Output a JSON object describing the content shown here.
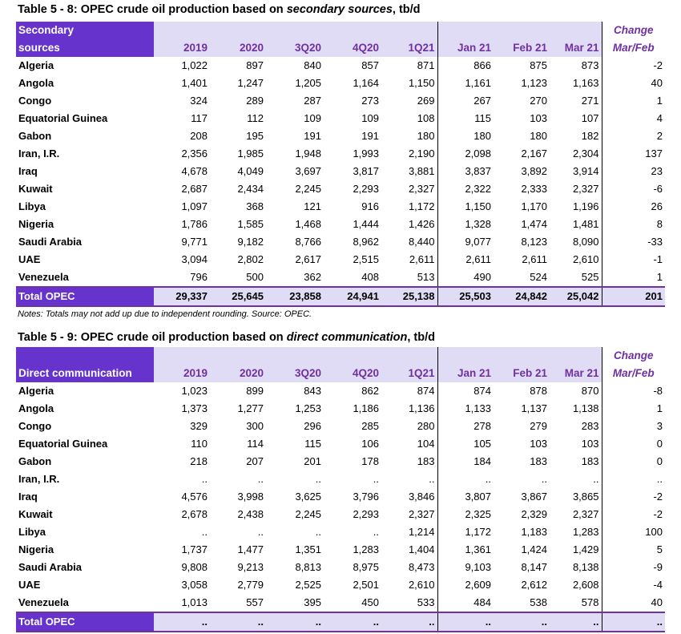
{
  "table1": {
    "title_prefix": "Table 5 - 8: OPEC crude oil production based on ",
    "title_italic": "secondary sources",
    "title_suffix": ", tb/d",
    "header": {
      "label_line1": "Secondary",
      "label_line2": "sources",
      "change_line1": "Change",
      "change_line2": "Mar/Feb",
      "columns": [
        "2019",
        "2020",
        "3Q20",
        "4Q20",
        "1Q21",
        "Jan 21",
        "Feb 21",
        "Mar 21"
      ]
    },
    "rows": [
      {
        "country": "Algeria",
        "values": [
          "1,022",
          "897",
          "840",
          "857",
          "871",
          "866",
          "875",
          "873"
        ],
        "change": "-2"
      },
      {
        "country": "Angola",
        "values": [
          "1,401",
          "1,247",
          "1,205",
          "1,164",
          "1,150",
          "1,161",
          "1,123",
          "1,163"
        ],
        "change": "40"
      },
      {
        "country": "Congo",
        "values": [
          "324",
          "289",
          "287",
          "273",
          "269",
          "267",
          "270",
          "271"
        ],
        "change": "1"
      },
      {
        "country": "Equatorial Guinea",
        "values": [
          "117",
          "112",
          "109",
          "109",
          "108",
          "115",
          "103",
          "107"
        ],
        "change": "4"
      },
      {
        "country": "Gabon",
        "values": [
          "208",
          "195",
          "191",
          "191",
          "180",
          "180",
          "180",
          "182"
        ],
        "change": "2"
      },
      {
        "country": "Iran, I.R.",
        "values": [
          "2,356",
          "1,985",
          "1,948",
          "1,993",
          "2,190",
          "2,098",
          "2,167",
          "2,304"
        ],
        "change": "137"
      },
      {
        "country": "Iraq",
        "values": [
          "4,678",
          "4,049",
          "3,697",
          "3,817",
          "3,881",
          "3,837",
          "3,892",
          "3,914"
        ],
        "change": "23"
      },
      {
        "country": "Kuwait",
        "values": [
          "2,687",
          "2,434",
          "2,245",
          "2,293",
          "2,327",
          "2,322",
          "2,333",
          "2,327"
        ],
        "change": "-6"
      },
      {
        "country": "Libya",
        "values": [
          "1,097",
          "368",
          "121",
          "916",
          "1,172",
          "1,150",
          "1,170",
          "1,196"
        ],
        "change": "26"
      },
      {
        "country": "Nigeria",
        "values": [
          "1,786",
          "1,585",
          "1,468",
          "1,444",
          "1,426",
          "1,328",
          "1,474",
          "1,481"
        ],
        "change": "8"
      },
      {
        "country": "Saudi Arabia",
        "values": [
          "9,771",
          "9,182",
          "8,766",
          "8,962",
          "8,440",
          "9,077",
          "8,123",
          "8,090"
        ],
        "change": "-33"
      },
      {
        "country": "UAE",
        "values": [
          "3,094",
          "2,802",
          "2,617",
          "2,515",
          "2,611",
          "2,611",
          "2,611",
          "2,610"
        ],
        "change": "-1"
      },
      {
        "country": "Venezuela",
        "values": [
          "796",
          "500",
          "362",
          "408",
          "513",
          "490",
          "524",
          "525"
        ],
        "change": "1"
      }
    ],
    "total": {
      "label": "Total  OPEC",
      "values": [
        "29,337",
        "25,645",
        "23,858",
        "24,941",
        "25,138",
        "25,503",
        "24,842",
        "25,042"
      ],
      "change": "201"
    },
    "note": "Notes: Totals may not add up due to independent rounding. Source: OPEC."
  },
  "table2": {
    "title_prefix": "Table 5 - 9: OPEC crude oil production based on ",
    "title_italic": "direct communication",
    "title_suffix": ", tb/d",
    "header": {
      "label_line1": "",
      "label_line2": "Direct communication",
      "change_line1": "Change",
      "change_line2": "Mar/Feb",
      "columns": [
        "2019",
        "2020",
        "3Q20",
        "4Q20",
        "1Q21",
        "Jan 21",
        "Feb 21",
        "Mar 21"
      ]
    },
    "rows": [
      {
        "country": "Algeria",
        "values": [
          "1,023",
          "899",
          "843",
          "862",
          "874",
          "874",
          "878",
          "870"
        ],
        "change": "-8"
      },
      {
        "country": "Angola",
        "values": [
          "1,373",
          "1,277",
          "1,253",
          "1,186",
          "1,136",
          "1,133",
          "1,137",
          "1,138"
        ],
        "change": "1"
      },
      {
        "country": "Congo",
        "values": [
          "329",
          "300",
          "296",
          "285",
          "280",
          "278",
          "279",
          "283"
        ],
        "change": "3"
      },
      {
        "country": "Equatorial Guinea",
        "values": [
          "110",
          "114",
          "115",
          "106",
          "104",
          "105",
          "103",
          "103"
        ],
        "change": "0"
      },
      {
        "country": "Gabon",
        "values": [
          "218",
          "207",
          "201",
          "178",
          "183",
          "184",
          "183",
          "183"
        ],
        "change": "0"
      },
      {
        "country": "Iran, I.R.",
        "values": [
          "..",
          "..",
          "..",
          "..",
          "..",
          "..",
          "..",
          ".."
        ],
        "change": ".."
      },
      {
        "country": "Iraq",
        "values": [
          "4,576",
          "3,998",
          "3,625",
          "3,796",
          "3,846",
          "3,807",
          "3,867",
          "3,865"
        ],
        "change": "-2"
      },
      {
        "country": "Kuwait",
        "values": [
          "2,678",
          "2,438",
          "2,245",
          "2,293",
          "2,327",
          "2,325",
          "2,329",
          "2,327"
        ],
        "change": "-2"
      },
      {
        "country": "Libya",
        "values": [
          "..",
          "..",
          "..",
          "..",
          "1,214",
          "1,172",
          "1,183",
          "1,283"
        ],
        "change": "100"
      },
      {
        "country": "Nigeria",
        "values": [
          "1,737",
          "1,477",
          "1,351",
          "1,283",
          "1,404",
          "1,361",
          "1,424",
          "1,429"
        ],
        "change": "5"
      },
      {
        "country": "Saudi Arabia",
        "values": [
          "9,808",
          "9,213",
          "8,813",
          "8,975",
          "8,473",
          "9,103",
          "8,147",
          "8,138"
        ],
        "change": "-9"
      },
      {
        "country": "UAE",
        "values": [
          "3,058",
          "2,779",
          "2,525",
          "2,501",
          "2,610",
          "2,609",
          "2,612",
          "2,608"
        ],
        "change": "-4"
      },
      {
        "country": "Venezuela",
        "values": [
          "1,013",
          "557",
          "395",
          "450",
          "533",
          "484",
          "538",
          "578"
        ],
        "change": "40"
      }
    ],
    "total": {
      "label": "Total  OPEC",
      "values": [
        "..",
        "..",
        "..",
        "..",
        "..",
        "..",
        "..",
        ".."
      ],
      "change": ".."
    }
  },
  "colors": {
    "header_purple": "#6633cc",
    "header_lavender": "#e1dcf5",
    "header_text": "#7030a0"
  }
}
